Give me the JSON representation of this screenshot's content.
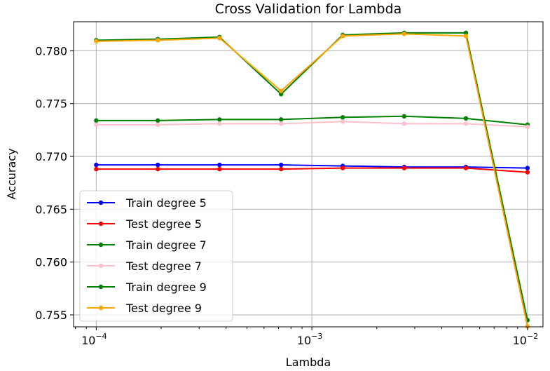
{
  "chart_data": {
    "type": "line",
    "title": "Cross Validation for Lambda",
    "xlabel": "Lambda",
    "ylabel": "Accuracy",
    "xscale": "log",
    "xlim": [
      7.85e-05,
      0.0118
    ],
    "ylim": [
      0.75387,
      0.78275
    ],
    "xticks": [
      {
        "value": 0.0001,
        "base": "10",
        "exp": "−4"
      },
      {
        "value": 0.001,
        "base": "10",
        "exp": "−3"
      },
      {
        "value": 0.01,
        "base": "10",
        "exp": "−2"
      }
    ],
    "yticks": [
      {
        "value": 0.755,
        "label": "0.755"
      },
      {
        "value": 0.76,
        "label": "0.760"
      },
      {
        "value": 0.765,
        "label": "0.765"
      },
      {
        "value": 0.77,
        "label": "0.770"
      },
      {
        "value": 0.775,
        "label": "0.775"
      },
      {
        "value": 0.78,
        "label": "0.780"
      }
    ],
    "grid": true,
    "legend_position": "lower-left",
    "x": [
      0.0001,
      0.000193,
      0.000373,
      0.00072,
      0.00139,
      0.00268,
      0.00518,
      0.01
    ],
    "series": [
      {
        "name": "Train degree 5",
        "color": "#0000ff",
        "values": [
          0.7692,
          0.7692,
          0.7692,
          0.7692,
          0.7691,
          0.769,
          0.769,
          0.7689
        ]
      },
      {
        "name": "Test degree 5",
        "color": "#ff0000",
        "values": [
          0.7688,
          0.7688,
          0.7688,
          0.7688,
          0.7689,
          0.7689,
          0.7689,
          0.7685
        ]
      },
      {
        "name": "Train degree 7",
        "color": "#008000",
        "values": [
          0.7734,
          0.7734,
          0.7735,
          0.7735,
          0.7737,
          0.7738,
          0.7736,
          0.773
        ]
      },
      {
        "name": "Test degree 7",
        "color": "#ffc0cb",
        "values": [
          0.773,
          0.773,
          0.7731,
          0.7731,
          0.7733,
          0.7731,
          0.7731,
          0.7728
        ]
      },
      {
        "name": "Train degree 9",
        "color": "#008000",
        "values": [
          0.781,
          0.7811,
          0.7813,
          0.7759,
          0.7815,
          0.7817,
          0.7817,
          0.7545
        ]
      },
      {
        "name": "Test degree 9",
        "color": "#ffa500",
        "values": [
          0.7809,
          0.781,
          0.7812,
          0.7762,
          0.7814,
          0.7816,
          0.7814,
          0.7539
        ]
      }
    ]
  }
}
